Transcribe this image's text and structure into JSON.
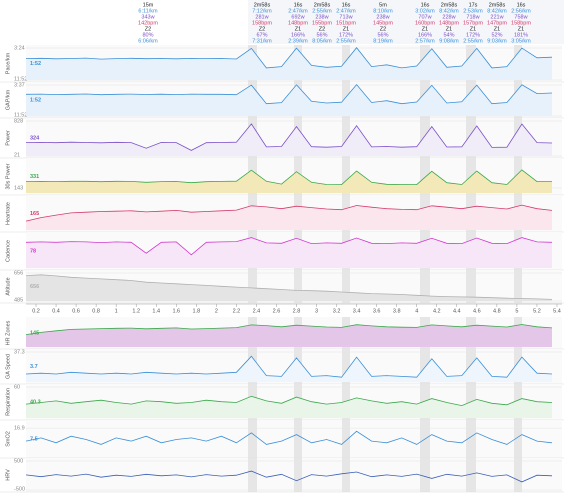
{
  "header": {
    "intervals": [
      {
        "stats": [
          "15m",
          "6:11/km",
          "343w",
          "142bpm",
          "Z2",
          "80%",
          "6:06/km"
        ]
      },
      {
        "stats": [
          "2m58s",
          "7:12/km",
          "281w",
          "158bpm",
          "Z2",
          "67%",
          "7:31/km"
        ]
      },
      {
        "stats": [
          "16s",
          "2:47/km",
          "692w",
          "148bpm",
          "Z1",
          "166%",
          "2:39/km"
        ]
      },
      {
        "stats": [
          "2m58s",
          "2:55/km",
          "238w",
          "155bpm",
          "Z2",
          "56%",
          "8:05/km"
        ]
      },
      {
        "stats": [
          "16s",
          "2:47/km",
          "713w",
          "151bpm",
          "Z1",
          "172%",
          "2:55/km"
        ]
      },
      {
        "stats": [
          "5m",
          "8:10/km",
          "238w",
          "145bpm",
          "Z2",
          "56%",
          "8:19/km"
        ]
      },
      {
        "stats": [
          "16s",
          "3:02/km",
          "707w",
          "160bpm",
          "Z1",
          "166%",
          "2:57/km"
        ]
      },
      {
        "stats": [
          "2m58s",
          "8:42/km",
          "228w",
          "148bpm",
          "Z1",
          "54%",
          "9:08/km"
        ]
      },
      {
        "stats": [
          "17s",
          "2:53/km",
          "718w",
          "157bpm",
          "Z1",
          "172%",
          "2:55/km"
        ]
      },
      {
        "stats": [
          "2m58s",
          "8:42/km",
          "221w",
          "147bpm",
          "Z1",
          "52%",
          "9:03/km"
        ]
      },
      {
        "stats": [
          "16s",
          "2:56/km",
          "758w",
          "158bpm",
          "Z1",
          "181%",
          "3:05/km"
        ]
      }
    ]
  },
  "chart_data": {
    "type": "line",
    "x": [
      0.1,
      0.25,
      0.4,
      0.55,
      0.7,
      0.85,
      1,
      1.15,
      1.3,
      1.45,
      1.6,
      1.75,
      1.9,
      2.05,
      2.2,
      2.35,
      2.5,
      2.65,
      2.8,
      2.95,
      3.1,
      3.25,
      3.4,
      3.55,
      3.7,
      3.85,
      4,
      4.15,
      4.3,
      4.45,
      4.6,
      4.75,
      4.9,
      5.05,
      5.2,
      5.35
    ],
    "xlim": [
      0.1,
      5.45
    ],
    "xticks": [
      0.2,
      0.4,
      0.6,
      0.8,
      1,
      1.2,
      1.4,
      1.6,
      1.8,
      2,
      2.2,
      2.4,
      2.6,
      2.8,
      3,
      3.2,
      3.4,
      3.6,
      3.8,
      4,
      4.2,
      4.4,
      4.6,
      4.8,
      5,
      5.2,
      5.4
    ],
    "panels": [
      {
        "name": "Pace/km",
        "readout": "1:52",
        "color": "#3a8fd8",
        "fill": "#e6f1fb",
        "ylim": [
          712,
          204
        ],
        "yticks": [
          {
            "value": 712,
            "label": "11:52"
          },
          {
            "value": 204,
            "label": "3:24"
          }
        ],
        "values": [
          372,
          368,
          375,
          370,
          365,
          380,
          372,
          368,
          374,
          370,
          376,
          369,
          372,
          371,
          378,
          210,
          520,
          500,
          205,
          480,
          510,
          495,
          200,
          500,
          470,
          520,
          490,
          215,
          510,
          490,
          210,
          520,
          500,
          205,
          360,
          350
        ]
      },
      {
        "name": "GAP/km",
        "readout": "1:52",
        "color": "#3a8fd8",
        "fill": "#e6f1fb",
        "ylim": [
          712,
          217
        ],
        "yticks": [
          {
            "value": 712,
            "label": "11:52"
          },
          {
            "value": 217,
            "label": "3:37"
          }
        ],
        "values": [
          365,
          362,
          370,
          366,
          360,
          372,
          366,
          362,
          368,
          364,
          370,
          362,
          366,
          365,
          372,
          218,
          515,
          498,
          214,
          478,
          505,
          492,
          210,
          497,
          468,
          515,
          488,
          222,
          505,
          486,
          218,
          515,
          497,
          214,
          355,
          345
        ]
      },
      {
        "name": "Power",
        "readout": "324",
        "color": "#7b4fc9",
        "fill": "#f0ecf8",
        "ylim": [
          21,
          828
        ],
        "yticks": [
          21,
          828
        ],
        "values": [
          330,
          335,
          328,
          340,
          332,
          325,
          338,
          330,
          200,
          335,
          330,
          150,
          328,
          332,
          340,
          760,
          230,
          240,
          700,
          235,
          225,
          240,
          720,
          230,
          240,
          225,
          235,
          700,
          228,
          232,
          715,
          220,
          225,
          758,
          330,
          320
        ]
      },
      {
        "name": "30s Power",
        "readout": "331",
        "color": "#3aa84a",
        "fill": "#f3e9b8",
        "ylim": [
          0,
          900
        ],
        "yticks": [
          143
        ],
        "values": [
          320,
          325,
          322,
          330,
          328,
          318,
          330,
          326,
          300,
          320,
          324,
          290,
          318,
          326,
          332,
          640,
          330,
          250,
          600,
          300,
          240,
          235,
          620,
          300,
          245,
          238,
          236,
          610,
          290,
          240,
          620,
          290,
          238,
          650,
          320,
          320
        ]
      },
      {
        "name": "Heartrate",
        "readout": "165",
        "color": "#d43a6a",
        "fill": "#fbe6ee",
        "ylim": [
          90,
          180
        ],
        "values": [
          115,
          125,
          132,
          138,
          140,
          142,
          143,
          144,
          141,
          143,
          145,
          140,
          142,
          144,
          146,
          158,
          155,
          150,
          157,
          153,
          149,
          147,
          159,
          154,
          150,
          148,
          147,
          158,
          154,
          150,
          157,
          153,
          149,
          160,
          150,
          145
        ]
      },
      {
        "name": "Cadence",
        "readout": "78",
        "color": "#d23ad2",
        "fill": "#f7e6f7",
        "ylim": [
          0,
          100
        ],
        "values": [
          78,
          79,
          78,
          80,
          79,
          77,
          79,
          78,
          45,
          78,
          79,
          40,
          78,
          79,
          80,
          92,
          76,
          75,
          90,
          74,
          76,
          75,
          91,
          75,
          74,
          76,
          75,
          90,
          75,
          74,
          91,
          75,
          74,
          92,
          79,
          78
        ]
      },
      {
        "name": "Altitude",
        "readout": "656",
        "color": "#b0b0b0",
        "fill": "#e4e4e4",
        "ylim": [
          485,
          656
        ],
        "yticks": [
          485,
          656
        ],
        "values": [
          640,
          645,
          638,
          630,
          625,
          620,
          615,
          610,
          600,
          595,
          590,
          585,
          580,
          575,
          570,
          565,
          560,
          555,
          550,
          548,
          545,
          540,
          535,
          530,
          528,
          525,
          520,
          515,
          512,
          510,
          508,
          505,
          502,
          500,
          498,
          495
        ]
      },
      {
        "name": "HR Zones",
        "readout": "145",
        "color": "#3aa84a",
        "fill": "#e3c6e8",
        "ylim": [
          60,
          180
        ],
        "values": [
          115,
          125,
          132,
          138,
          140,
          142,
          143,
          144,
          141,
          143,
          145,
          140,
          142,
          144,
          146,
          158,
          155,
          150,
          157,
          153,
          149,
          147,
          159,
          154,
          150,
          148,
          147,
          158,
          154,
          150,
          157,
          153,
          149,
          160,
          150,
          145
        ]
      },
      {
        "name": "GA Speed",
        "readout": "3.7",
        "color": "#3a8fd8",
        "fill": "#eef5fc",
        "ylim": [
          0,
          37.3
        ],
        "yticks": [
          37.3
        ],
        "values": [
          10,
          11,
          10,
          12,
          11,
          10,
          11,
          10,
          12,
          11,
          10,
          11,
          10,
          11,
          12,
          32,
          8,
          7,
          30,
          7,
          8,
          6,
          31,
          7,
          8,
          7,
          6,
          29,
          7,
          8,
          30,
          7,
          6,
          31,
          11,
          10
        ]
      },
      {
        "name": "Respiration",
        "readout": "40.3",
        "color": "#3aa84a",
        "fill": "#e9f5e9",
        "ylim": [
          20,
          60
        ],
        "yticks": [
          60
        ],
        "values": [
          38,
          40,
          42,
          39,
          41,
          43,
          40,
          38,
          42,
          41,
          39,
          40,
          43,
          41,
          40,
          48,
          42,
          39,
          47,
          41,
          38,
          40,
          46,
          42,
          39,
          41,
          38,
          45,
          40,
          36,
          44,
          39,
          37,
          45,
          41,
          40
        ]
      },
      {
        "name": "SmO2",
        "readout": "7.5",
        "color": "#3a8fd8",
        "ylim": [
          0,
          20
        ],
        "yticks": [
          16.9
        ],
        "values": [
          9,
          11,
          8,
          12,
          10,
          7,
          11,
          9,
          12,
          8,
          10,
          11,
          9,
          12,
          8,
          14,
          7,
          9,
          13,
          8,
          10,
          7,
          15,
          9,
          8,
          11,
          7,
          13,
          9,
          8,
          14,
          10,
          7,
          13,
          9,
          8
        ]
      },
      {
        "name": "HRV",
        "color": "#3a5fb8",
        "ylim": [
          -500,
          500
        ],
        "yticks": [
          -500,
          500
        ],
        "values": [
          20,
          -40,
          30,
          -20,
          50,
          -60,
          10,
          -30,
          40,
          -10,
          20,
          -50,
          30,
          -20,
          10,
          150,
          -60,
          40,
          -180,
          30,
          -20,
          60,
          120,
          -40,
          20,
          -30,
          50,
          -100,
          40,
          -20,
          90,
          -30,
          20,
          -220,
          10,
          -10
        ]
      }
    ]
  }
}
